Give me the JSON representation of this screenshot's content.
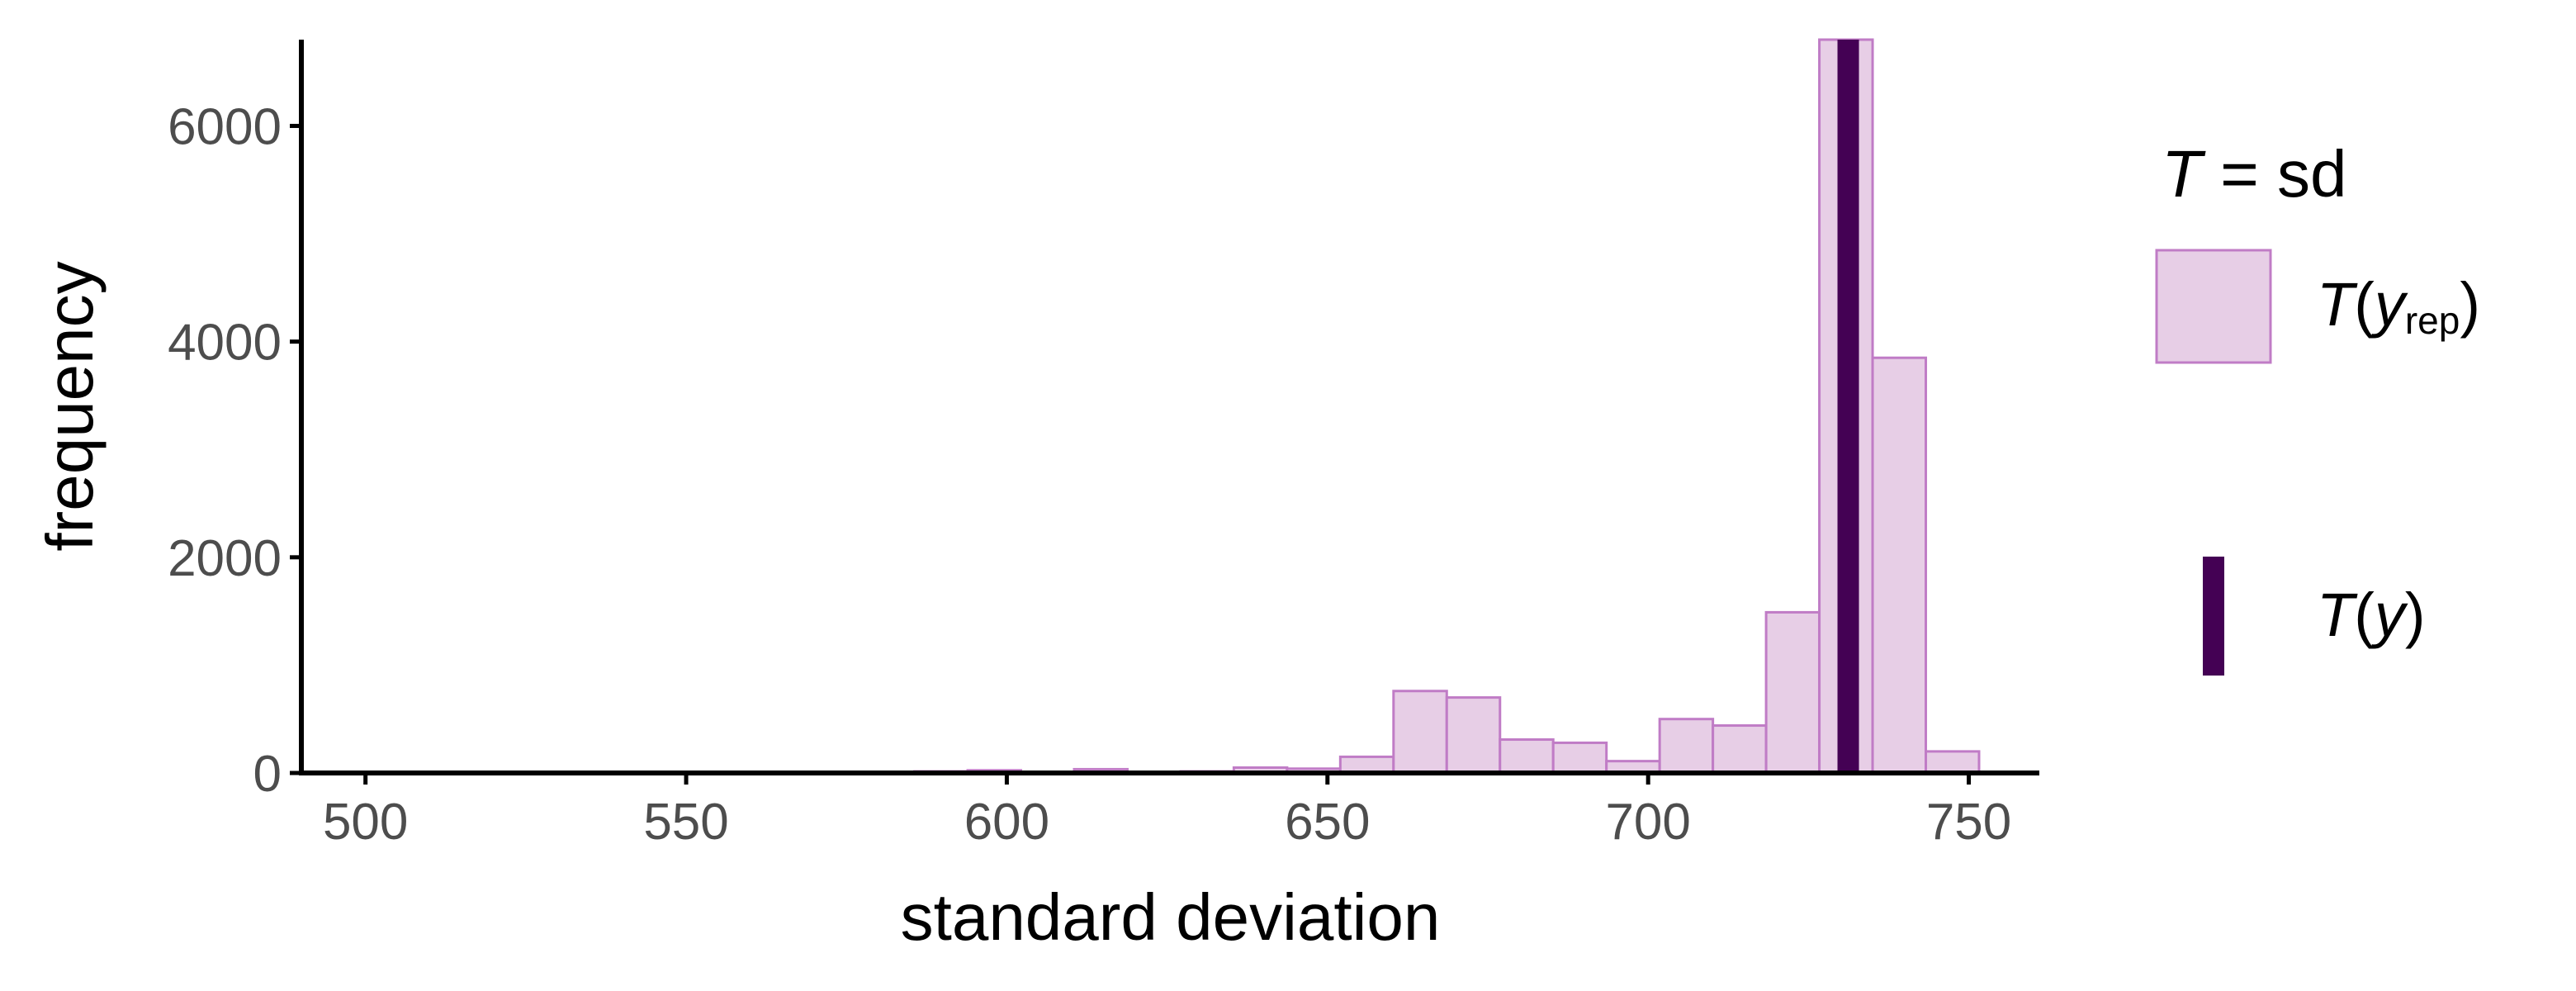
{
  "chart_data": {
    "type": "bar",
    "xlabel": "standard deviation",
    "ylabel": "frequency",
    "xlim": [
      490,
      761
    ],
    "ylim": [
      0,
      6800
    ],
    "x_ticks": [
      500,
      550,
      600,
      650,
      700,
      750
    ],
    "y_ticks": [
      0,
      2000,
      4000,
      6000
    ],
    "bin_width": 8.3,
    "bins": [
      {
        "x0": 585.6,
        "count": 15
      },
      {
        "x0": 593.9,
        "count": 25
      },
      {
        "x0": 602.2,
        "count": 10
      },
      {
        "x0": 610.5,
        "count": 35
      },
      {
        "x0": 618.8,
        "count": 5
      },
      {
        "x0": 627.1,
        "count": 15
      },
      {
        "x0": 635.4,
        "count": 50
      },
      {
        "x0": 643.7,
        "count": 40
      },
      {
        "x0": 652.0,
        "count": 150
      },
      {
        "x0": 660.3,
        "count": 760
      },
      {
        "x0": 668.6,
        "count": 700
      },
      {
        "x0": 676.9,
        "count": 310
      },
      {
        "x0": 685.2,
        "count": 280
      },
      {
        "x0": 693.5,
        "count": 110
      },
      {
        "x0": 701.8,
        "count": 500
      },
      {
        "x0": 710.1,
        "count": 440
      },
      {
        "x0": 718.4,
        "count": 1490
      },
      {
        "x0": 726.7,
        "count": 6800
      },
      {
        "x0": 735.0,
        "count": 3850
      },
      {
        "x0": 743.3,
        "count": 200
      }
    ],
    "observed_value": 731.2,
    "colors": {
      "rep_fill": "#e7cee6",
      "rep_outline": "#c07cc6",
      "observed": "#440154",
      "axis": "#000000",
      "tick_text": "#4d4d4d"
    },
    "grid": false,
    "legend_position": "right",
    "legend": {
      "title_T": "T",
      "title_rest": " = sd",
      "rep_label_T": "T",
      "rep_label_y": "y",
      "rep_label_sub": "rep",
      "obs_label_T": "T",
      "obs_label_y": "y",
      "open_paren": "(",
      "close_paren": ")"
    }
  }
}
